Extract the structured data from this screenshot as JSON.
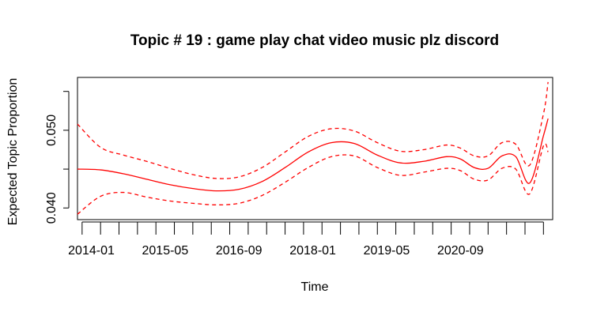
{
  "chart_data": {
    "type": "line",
    "title": "Topic # 19 :  game play chat video music plz discord",
    "xlabel": "Time",
    "ylabel": "Expected Topic Proportion",
    "x_tick_labels": [
      "2014-01",
      "2015-05",
      "2016-09",
      "2018-01",
      "2019-05",
      "2020-09"
    ],
    "y_tick_labels": [
      "0.040",
      "0.050"
    ],
    "y_ticks": [
      0.04,
      0.045,
      0.05,
      0.055
    ],
    "ylim": [
      0.0385,
      0.0568
    ],
    "x_month_range": [
      "2013-10",
      "2022-05"
    ],
    "line_color": "#ff0000",
    "x": [
      "2013-10",
      "2014-03",
      "2014-08",
      "2015-01",
      "2015-06",
      "2015-11",
      "2016-04",
      "2016-09",
      "2017-02",
      "2017-07",
      "2017-12",
      "2018-05",
      "2018-10",
      "2019-03",
      "2019-08",
      "2020-01",
      "2020-06",
      "2020-09",
      "2020-12",
      "2021-03",
      "2021-06",
      "2021-09",
      "2021-12",
      "2022-03",
      "2022-04"
    ],
    "series": [
      {
        "role": "estimate",
        "style": "solid",
        "values": [
          0.045,
          0.0449,
          0.0444,
          0.0437,
          0.043,
          0.0425,
          0.0422,
          0.0424,
          0.0434,
          0.0452,
          0.0472,
          0.0484,
          0.0483,
          0.0468,
          0.0458,
          0.046,
          0.0466,
          0.0463,
          0.0452,
          0.0451,
          0.0467,
          0.0466,
          0.0432,
          0.0493,
          0.0515
        ]
      },
      {
        "role": "upper",
        "style": "dashed",
        "values": [
          0.0508,
          0.0478,
          0.0468,
          0.046,
          0.0451,
          0.0443,
          0.0438,
          0.044,
          0.0452,
          0.0472,
          0.0492,
          0.0502,
          0.0499,
          0.0484,
          0.0473,
          0.0475,
          0.0481,
          0.0477,
          0.0467,
          0.0467,
          0.0484,
          0.0482,
          0.0455,
          0.0521,
          0.0562
        ]
      },
      {
        "role": "lower",
        "style": "dashed",
        "values": [
          0.0392,
          0.0415,
          0.042,
          0.0414,
          0.0409,
          0.0406,
          0.0404,
          0.0406,
          0.0416,
          0.0433,
          0.0452,
          0.0466,
          0.0467,
          0.0452,
          0.0442,
          0.0446,
          0.0451,
          0.0448,
          0.0437,
          0.0436,
          0.0451,
          0.045,
          0.0418,
          0.048,
          0.0472
        ]
      }
    ]
  }
}
